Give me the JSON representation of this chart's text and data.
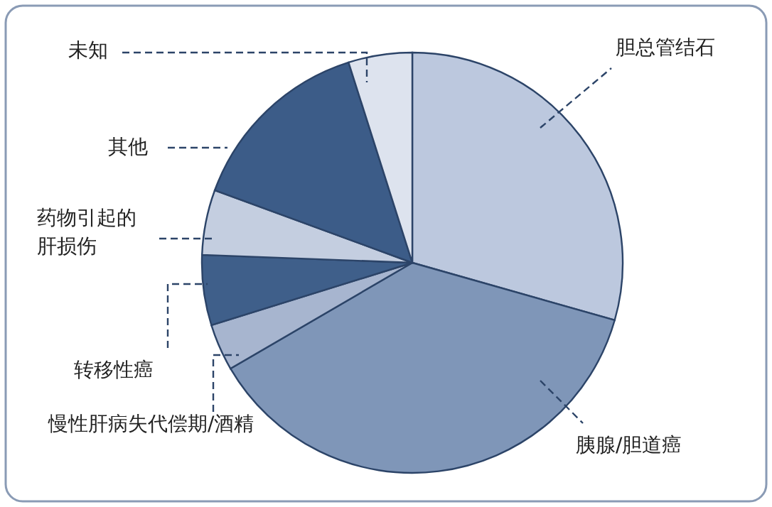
{
  "chart_data": {
    "type": "pie",
    "categories": [
      "胆总管结石",
      "胰腺/胆道癌",
      "慢性肝病失代偿期/酒精",
      "转移性癌",
      "药物引起的肝损伤",
      "其他",
      "未知"
    ],
    "values": [
      29.4,
      37.2,
      3.6,
      5.4,
      5.0,
      14.5,
      4.9
    ],
    "colors": [
      "#bcc8de",
      "#7f96b8",
      "#a7b5cf",
      "#3f5f8a",
      "#c4cee0",
      "#3c5c88",
      "#dde3ee"
    ]
  }
}
